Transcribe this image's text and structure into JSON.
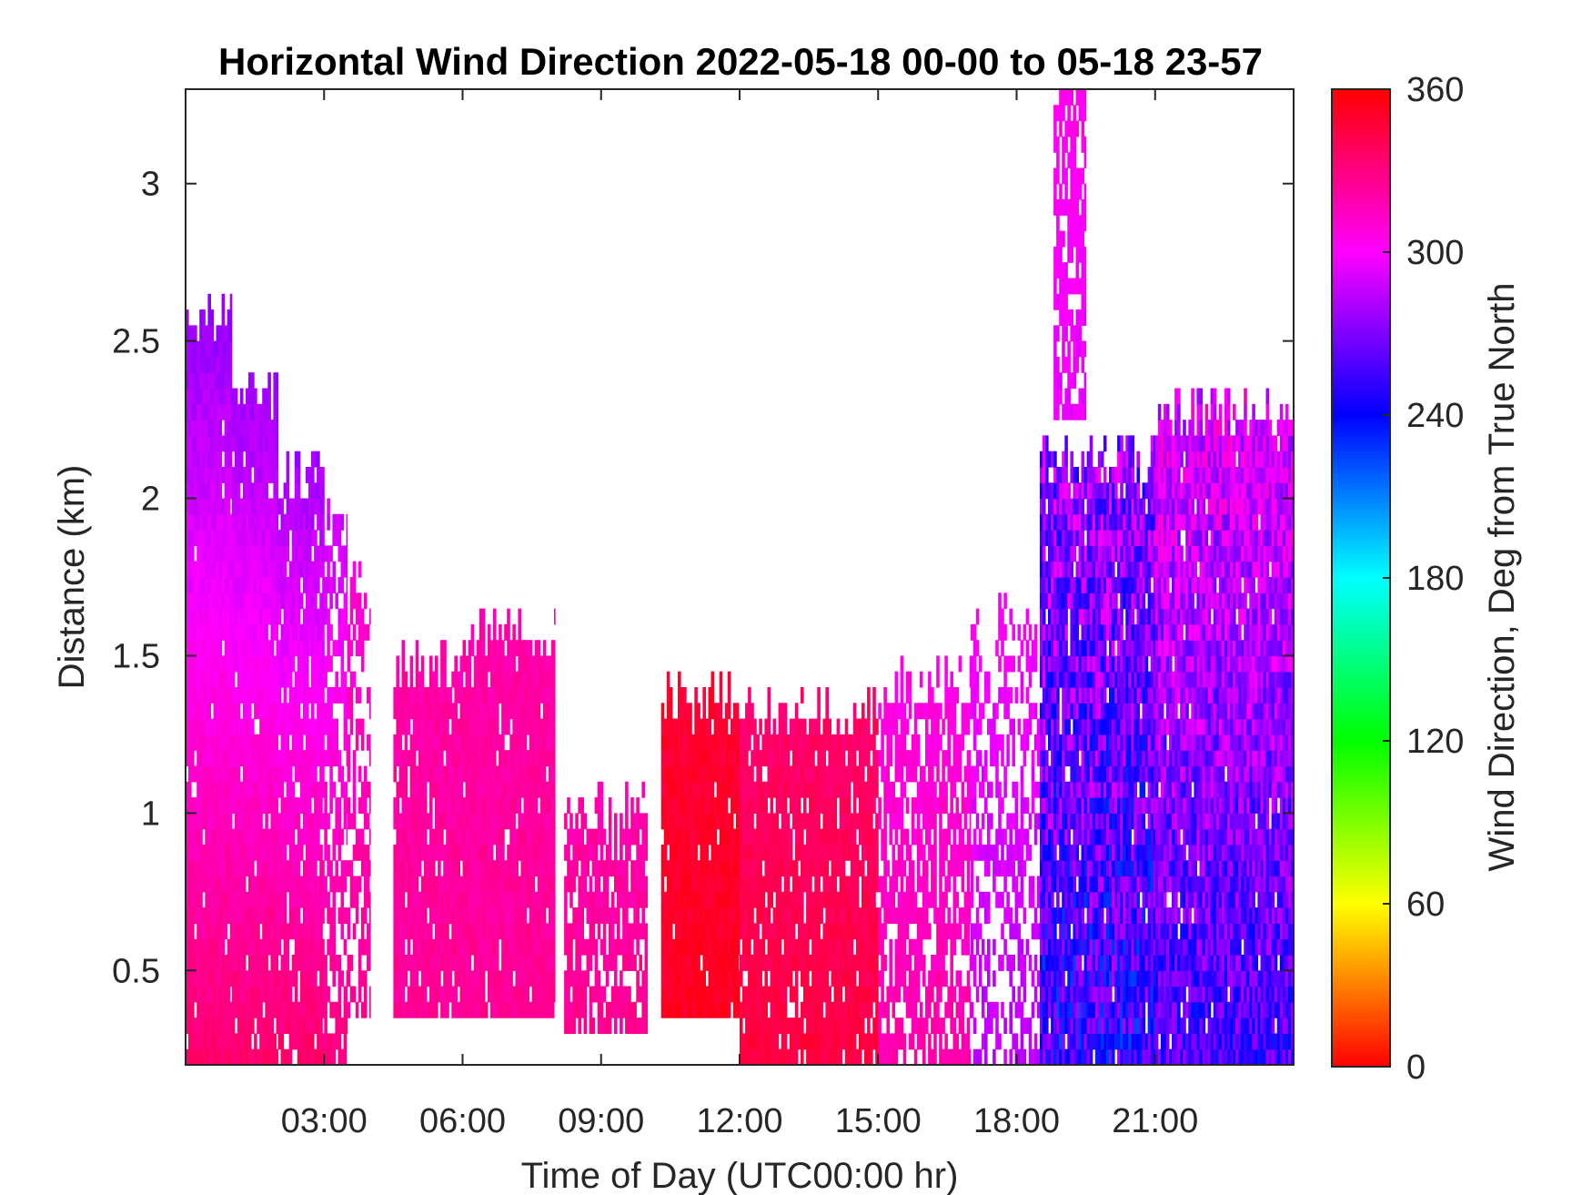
{
  "chart_data": {
    "type": "heatmap",
    "title": "Horizontal Wind Direction 2022-05-18 00-00 to 05-18 23-57",
    "xlabel": "Time of Day (UTC00:00 hr)",
    "ylabel": "Distance (km)",
    "xlim_hours": [
      0,
      24
    ],
    "ylim": [
      0.2,
      3.3
    ],
    "x_ticks": [
      {
        "value": 3,
        "label": "03:00"
      },
      {
        "value": 6,
        "label": "06:00"
      },
      {
        "value": 9,
        "label": "09:00"
      },
      {
        "value": 12,
        "label": "12:00"
      },
      {
        "value": 15,
        "label": "15:00"
      },
      {
        "value": 18,
        "label": "18:00"
      },
      {
        "value": 21,
        "label": "21:00"
      }
    ],
    "y_ticks": [
      {
        "value": 0.5,
        "label": "0.5"
      },
      {
        "value": 1,
        "label": "1"
      },
      {
        "value": 1.5,
        "label": "1.5"
      },
      {
        "value": 2,
        "label": "2"
      },
      {
        "value": 2.5,
        "label": "2.5"
      },
      {
        "value": 3,
        "label": "3"
      }
    ],
    "colorbar": {
      "label": "Wind Direction, Deg from True North",
      "range": [
        0,
        360
      ],
      "ticks": [
        {
          "value": 0,
          "label": "0"
        },
        {
          "value": 60,
          "label": "60"
        },
        {
          "value": 120,
          "label": "120"
        },
        {
          "value": 180,
          "label": "180"
        },
        {
          "value": 240,
          "label": "240"
        },
        {
          "value": 300,
          "label": "300"
        },
        {
          "value": 360,
          "label": "360"
        }
      ],
      "colors": [
        "#ff0000",
        "#ff8000",
        "#ffff00",
        "#80ff00",
        "#00ff00",
        "#00ff80",
        "#00ffff",
        "#0080ff",
        "#0000ff",
        "#8000ff",
        "#ff00ff",
        "#ff0080",
        "#ff0000"
      ]
    },
    "regions": [
      {
        "t0": 0.0,
        "t1": 1.0,
        "top": 2.55,
        "bottom": 0.2,
        "dir_low": 335,
        "dir_high": 275,
        "density": 0.97
      },
      {
        "t0": 1.0,
        "t1": 2.0,
        "top": 2.3,
        "bottom": 0.2,
        "dir_low": 335,
        "dir_high": 278,
        "density": 0.96
      },
      {
        "t0": 2.0,
        "t1": 3.0,
        "top": 2.05,
        "bottom": 0.2,
        "dir_low": 335,
        "dir_high": 280,
        "density": 0.9
      },
      {
        "t0": 3.0,
        "t1": 3.5,
        "top": 1.9,
        "bottom": 0.2,
        "dir_low": 330,
        "dir_high": 290,
        "density": 0.6
      },
      {
        "t0": 3.5,
        "t1": 4.0,
        "top": 1.7,
        "bottom": 0.35,
        "dir_low": 325,
        "dir_high": 310,
        "density": 0.55
      },
      {
        "t0": 4.5,
        "t1": 6.0,
        "top": 1.45,
        "bottom": 0.35,
        "dir_low": 325,
        "dir_high": 320,
        "density": 0.92
      },
      {
        "t0": 6.0,
        "t1": 8.0,
        "top": 1.55,
        "bottom": 0.35,
        "dir_low": 325,
        "dir_high": 320,
        "density": 0.95
      },
      {
        "t0": 8.2,
        "t1": 10.0,
        "top": 1.0,
        "bottom": 0.3,
        "dir_low": 325,
        "dir_high": 320,
        "density": 0.75
      },
      {
        "t0": 10.3,
        "t1": 12.0,
        "top": 1.35,
        "bottom": 0.35,
        "dir_low": 352,
        "dir_high": 348,
        "density": 0.97
      },
      {
        "t0": 12.0,
        "t1": 15.0,
        "top": 1.3,
        "bottom": 0.2,
        "dir_low": 345,
        "dir_high": 335,
        "density": 0.9
      },
      {
        "t0": 15.0,
        "t1": 17.0,
        "top": 1.4,
        "bottom": 0.2,
        "dir_low": 320,
        "dir_high": 305,
        "density": 0.7
      },
      {
        "t0": 17.0,
        "t1": 18.5,
        "top": 1.6,
        "bottom": 0.2,
        "dir_low": 285,
        "dir_high": 300,
        "density": 0.45
      },
      {
        "t0": 18.5,
        "t1": 21.0,
        "top": 2.1,
        "bottom": 0.2,
        "dir_low": 250,
        "dir_high": 275,
        "density": 0.95,
        "scatter": 60
      },
      {
        "t0": 21.0,
        "t1": 24.0,
        "top": 2.25,
        "bottom": 0.2,
        "dir_low": 255,
        "dir_high": 295,
        "density": 0.97,
        "scatter": 45
      },
      {
        "t0": 18.8,
        "t1": 19.5,
        "top": 3.3,
        "bottom": 2.25,
        "dir_low": 295,
        "dir_high": 305,
        "density": 0.7
      }
    ]
  }
}
